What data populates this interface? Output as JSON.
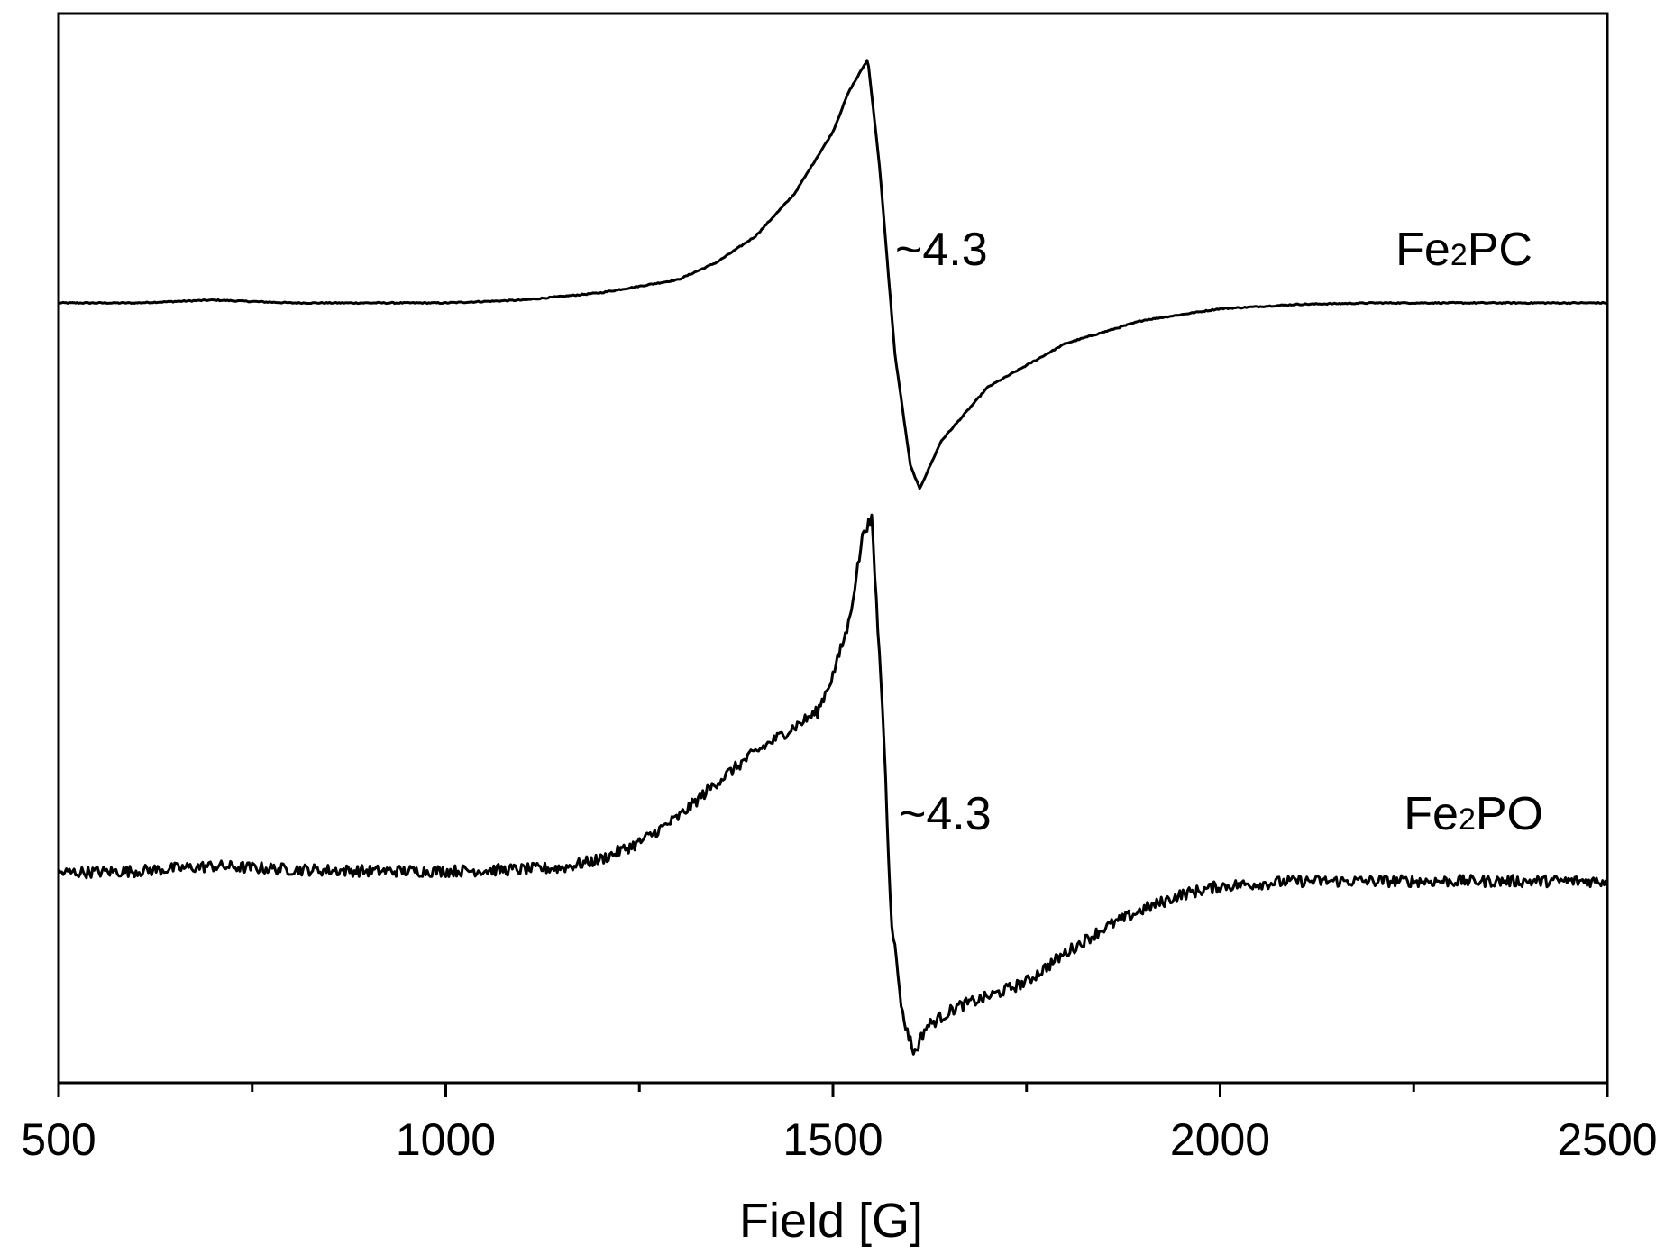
{
  "chart_data": {
    "type": "line",
    "xlabel": "Field [G]",
    "ylabel": "",
    "xlim": [
      500,
      2500
    ],
    "x_ticks": [
      500,
      1000,
      1500,
      2000,
      2500
    ],
    "x_minor_ticks": [
      750,
      1250,
      1750,
      2250
    ],
    "y_ticks_shown": false,
    "grid": false,
    "series": [
      {
        "name_main": "Fe",
        "name_sub": "2",
        "name_rest": "PC",
        "name": "Fe2PC",
        "annotation": "~4.3",
        "x": [
          500,
          600,
          700,
          800,
          900,
          1000,
          1100,
          1200,
          1300,
          1350,
          1400,
          1450,
          1500,
          1520,
          1545,
          1560,
          1580,
          1600,
          1612,
          1640,
          1700,
          1800,
          1900,
          2000,
          2100,
          2200,
          2300,
          2400,
          2500
        ],
        "y": [
          0.0,
          0.0,
          0.02,
          0.0,
          0.0,
          0.0,
          0.02,
          0.07,
          0.16,
          0.28,
          0.46,
          0.75,
          1.18,
          1.45,
          1.68,
          0.95,
          -0.35,
          -1.12,
          -1.28,
          -0.95,
          -0.58,
          -0.28,
          -0.12,
          -0.04,
          -0.01,
          0.0,
          0.0,
          0.0,
          0.0
        ],
        "noise": 0.004
      },
      {
        "name_main": "Fe",
        "name_sub": "2",
        "name_rest": "PO",
        "name": "Fe2PO",
        "annotation": "~4.3",
        "x": [
          500,
          600,
          700,
          800,
          900,
          1000,
          1100,
          1150,
          1200,
          1250,
          1300,
          1350,
          1400,
          1450,
          1480,
          1500,
          1520,
          1540,
          1550,
          1565,
          1575,
          1590,
          1605,
          1620,
          1660,
          1700,
          1750,
          1800,
          1850,
          1900,
          1950,
          2000,
          2100,
          2200,
          2300,
          2400,
          2500
        ],
        "y": [
          0.0,
          0.01,
          0.04,
          0.02,
          0.01,
          0.01,
          0.02,
          0.03,
          0.08,
          0.18,
          0.33,
          0.54,
          0.72,
          0.87,
          0.96,
          1.18,
          1.48,
          2.05,
          2.1,
          0.9,
          -0.25,
          -0.85,
          -1.08,
          -0.92,
          -0.8,
          -0.74,
          -0.65,
          -0.48,
          -0.33,
          -0.22,
          -0.13,
          -0.08,
          -0.05,
          -0.05,
          -0.05,
          -0.05,
          -0.05
        ],
        "noise": 0.035
      }
    ]
  }
}
